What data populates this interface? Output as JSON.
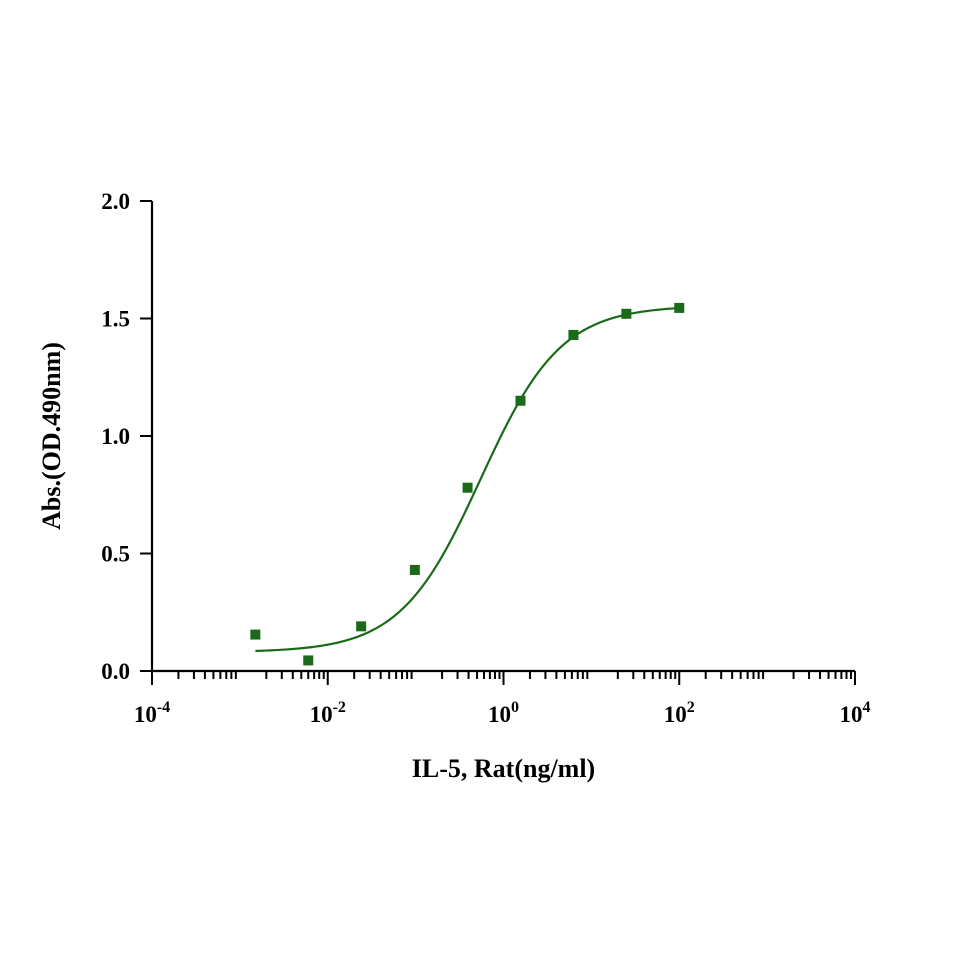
{
  "chart_data": {
    "type": "scatter",
    "xlabel": "IL-5, Rat(ng/ml)",
    "ylabel": "Abs.(OD.490nm)",
    "x_scale": "log10",
    "xlim": [
      0.0001,
      10000
    ],
    "ylim": [
      0,
      2.0
    ],
    "x_ticks": [
      {
        "base": "10",
        "exp": "-4",
        "value": 0.0001
      },
      {
        "base": "10",
        "exp": "-2",
        "value": 0.01
      },
      {
        "base": "10",
        "exp": "0",
        "value": 1
      },
      {
        "base": "10",
        "exp": "2",
        "value": 100
      },
      {
        "base": "10",
        "exp": "4",
        "value": 10000
      }
    ],
    "y_ticks": [
      "0.0",
      "0.5",
      "1.0",
      "1.5",
      "2.0"
    ],
    "grid": false,
    "series": [
      {
        "marker": "square",
        "color": "#1a6a1a",
        "points": [
          {
            "x": 0.0015,
            "y": 0.155
          },
          {
            "x": 0.006,
            "y": 0.045
          },
          {
            "x": 0.024,
            "y": 0.19
          },
          {
            "x": 0.098,
            "y": 0.43
          },
          {
            "x": 0.39,
            "y": 0.78
          },
          {
            "x": 1.56,
            "y": 1.15
          },
          {
            "x": 6.25,
            "y": 1.43
          },
          {
            "x": 25,
            "y": 1.52
          },
          {
            "x": 100,
            "y": 1.545
          }
        ],
        "fit": {
          "model": "4PL",
          "bottom": 0.08,
          "top": 1.555,
          "ec50": 0.55,
          "hill": 0.95,
          "x_range": [
            0.0015,
            100
          ]
        }
      }
    ]
  }
}
